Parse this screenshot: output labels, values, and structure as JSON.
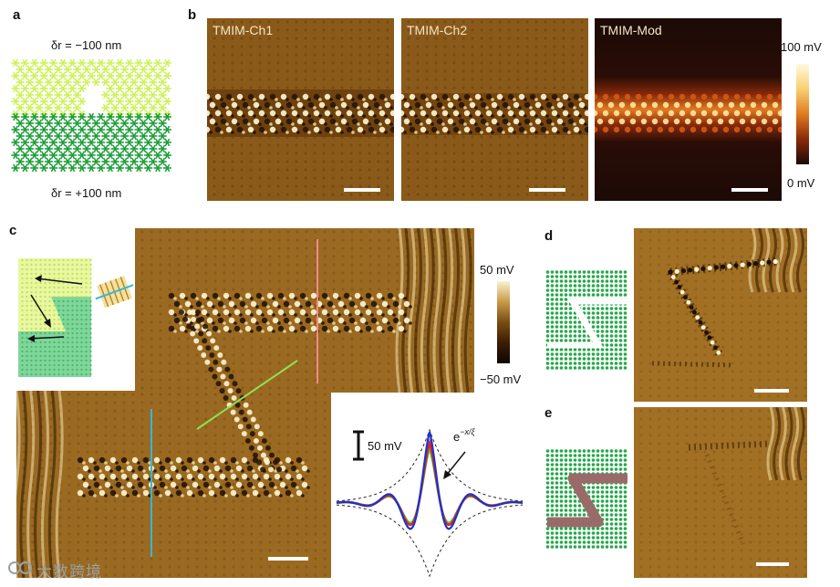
{
  "panels": {
    "a": {
      "letter": "a",
      "top_label": "δr = −100 nm",
      "bottom_label": "δr = +100 nm",
      "colors": {
        "upper": "#cdf25a",
        "lower": "#1f9e3a"
      }
    },
    "b": {
      "letter": "b",
      "maps": [
        {
          "label": "TMIM-Ch1"
        },
        {
          "label": "TMIM-Ch2"
        },
        {
          "label": "TMIM-Mod"
        }
      ],
      "colorbar": {
        "max_label": "100 mV",
        "min_label": "0 mV"
      }
    },
    "c": {
      "letter": "c",
      "colorbar": {
        "max_label": "50 mV",
        "min_label": "−50 mV"
      },
      "inset": {
        "scale_label": "50 mV",
        "fit_label": "e",
        "fit_exponent": "−x/ξ",
        "line_colors": [
          "#1a33cc",
          "#e0242b",
          "#3fcf3a"
        ]
      },
      "cut_colors": {
        "pink": "#f08a8a",
        "green": "#8ee05a",
        "cyan": "#38b6d8"
      }
    },
    "d": {
      "letter": "d"
    },
    "e": {
      "letter": "e"
    }
  },
  "watermark": "大数跨境",
  "colors": {
    "map_bg": "#8a5a1a",
    "mod_bg": "#1c0a06",
    "lattice_green": "#26a84a",
    "defect_brown": "#9a6a6a"
  }
}
